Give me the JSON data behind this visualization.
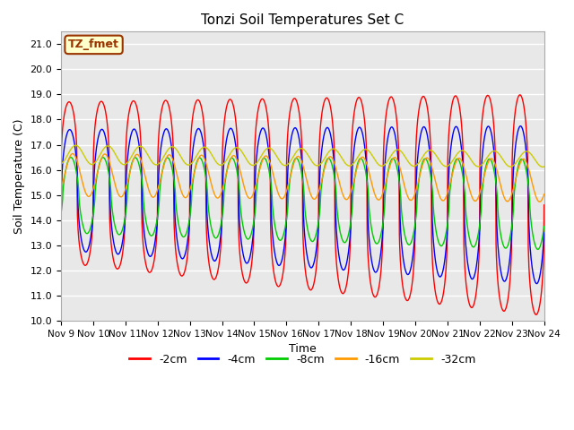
{
  "title": "Tonzi Soil Temperatures Set C",
  "xlabel": "Time",
  "ylabel": "Soil Temperature (C)",
  "ylim": [
    10.0,
    21.5
  ],
  "yticks": [
    10.0,
    11.0,
    12.0,
    13.0,
    14.0,
    15.0,
    16.0,
    17.0,
    18.0,
    19.0,
    20.0,
    21.0
  ],
  "xtick_labels": [
    "Nov 9",
    "Nov 10",
    "Nov 11",
    "Nov 12",
    "Nov 13",
    "Nov 14",
    "Nov 15",
    "Nov 16",
    "Nov 17",
    "Nov 18",
    "Nov 19",
    "Nov 20",
    "Nov 21",
    "Nov 22",
    "Nov 23",
    "Nov 24"
  ],
  "colors": {
    "-2cm": "#ff0000",
    "-4cm": "#0000ff",
    "-8cm": "#00cc00",
    "-16cm": "#ff9900",
    "-32cm": "#cccc00"
  },
  "annotation_text": "TZ_fmet",
  "annotation_bg": "#ffffcc",
  "annotation_border": "#993300",
  "fig_bg": "#ffffff",
  "plot_bg": "#e8e8e8",
  "grid_color": "#ffffff",
  "days": 15,
  "n_points": 1500,
  "series": {
    "-2cm": {
      "mean": 15.5,
      "amp": 3.2,
      "amp_grow": 0.08,
      "phase": 0.0,
      "trend": -0.06,
      "sharp": 3.0
    },
    "-4cm": {
      "mean": 15.2,
      "amp": 2.4,
      "amp_grow": 0.05,
      "phase": 0.12,
      "trend": -0.04,
      "sharp": 2.0
    },
    "-8cm": {
      "mean": 15.0,
      "amp": 1.5,
      "amp_grow": 0.02,
      "phase": 0.35,
      "trend": -0.025,
      "sharp": 1.5
    },
    "-16cm": {
      "mean": 15.8,
      "amp": 0.85,
      "amp_grow": 0.0,
      "phase": 0.7,
      "trend": -0.015,
      "sharp": 1.0
    },
    "-32cm": {
      "mean": 16.6,
      "amp": 0.38,
      "amp_grow": -0.005,
      "phase": 1.3,
      "trend": -0.012,
      "sharp": 1.0
    }
  }
}
